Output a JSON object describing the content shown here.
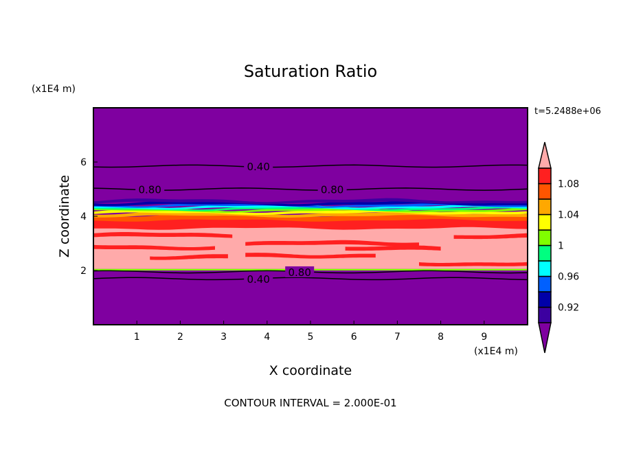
{
  "chart_data": {
    "type": "heatmap",
    "subtype": "filled-contour",
    "title": "Saturation Ratio",
    "xlabel": "X coordinate",
    "ylabel": "Z coordinate",
    "x_unit": "(x1E4 m)",
    "y_unit": "(x1E4 m)",
    "time_label": "t=5.2488e+06",
    "footer": "CONTOUR INTERVAL = 2.000E-01",
    "xlim": [
      0,
      10
    ],
    "ylim": [
      0,
      8
    ],
    "xticks": [
      "1",
      "2",
      "3",
      "4",
      "5",
      "6",
      "7",
      "8",
      "9"
    ],
    "yticks": [
      "2",
      "4",
      "6"
    ],
    "colorbar": {
      "levels": [
        0.9,
        0.92,
        0.94,
        0.96,
        0.98,
        1.0,
        1.02,
        1.04,
        1.06,
        1.08,
        1.1
      ],
      "labels": [
        "0.92",
        "0.96",
        "1",
        "1.04",
        "1.08"
      ],
      "colors": [
        "#7f00a0",
        "#3c00a0",
        "#0000a8",
        "#0060ff",
        "#00ffff",
        "#00ff80",
        "#80ff00",
        "#ffff00",
        "#ffa800",
        "#ff5500",
        "#ff2020",
        "#ffaaaa"
      ],
      "extend": "both"
    },
    "bands": [
      {
        "z": [
          0,
          8
        ],
        "color": "#7f00a0"
      },
      {
        "z": [
          2.0,
          2.06
        ],
        "color": "#80ff00"
      },
      {
        "z": [
          2.06,
          3.9
        ],
        "color": "#ffaaaa"
      },
      {
        "z": [
          3.55,
          3.95
        ],
        "color": "#ff2020"
      },
      {
        "z": [
          3.85,
          4.05
        ],
        "color": "#ff5500"
      },
      {
        "z": [
          4.0,
          4.12
        ],
        "color": "#ffa800"
      },
      {
        "z": [
          4.1,
          4.2
        ],
        "color": "#ffff00"
      },
      {
        "z": [
          4.18,
          4.26
        ],
        "color": "#80ff00"
      },
      {
        "z": [
          4.24,
          4.32
        ],
        "color": "#00ff80"
      },
      {
        "z": [
          4.3,
          4.38
        ],
        "color": "#00ffff"
      },
      {
        "z": [
          4.36,
          4.44
        ],
        "color": "#0060ff"
      },
      {
        "z": [
          4.42,
          4.52
        ],
        "color": "#0000a8"
      },
      {
        "z": [
          4.5,
          4.6
        ],
        "color": "#3c00a0"
      }
    ],
    "streaks": [
      {
        "x": [
          0,
          3.2
        ],
        "z": 3.3,
        "color": "#ff2020"
      },
      {
        "x": [
          3.5,
          7.5
        ],
        "z": 3.0,
        "color": "#ff2020"
      },
      {
        "x": [
          0,
          2.8
        ],
        "z": 2.85,
        "color": "#ff2020"
      },
      {
        "x": [
          1.3,
          3.1
        ],
        "z": 2.5,
        "color": "#ff2020"
      },
      {
        "x": [
          3.5,
          6.5
        ],
        "z": 2.55,
        "color": "#ff2020"
      },
      {
        "x": [
          5.8,
          8.0
        ],
        "z": 2.8,
        "color": "#ff2020"
      },
      {
        "x": [
          7.5,
          10
        ],
        "z": 2.25,
        "color": "#ff2020"
      },
      {
        "x": [
          8.3,
          10
        ],
        "z": 3.25,
        "color": "#ff2020"
      }
    ],
    "contours": [
      {
        "level": "0.40",
        "z": 1.7,
        "label_x": 3.5
      },
      {
        "level": "0.80",
        "z": 1.95,
        "label_x": 3.5
      },
      {
        "level": "0.80",
        "z": 5.0,
        "label_x": 1.0
      },
      {
        "level": "0.80",
        "z": 5.0,
        "label_x": 5.2
      },
      {
        "level": "0.40",
        "z": 5.85,
        "label_x": 3.5
      }
    ]
  }
}
